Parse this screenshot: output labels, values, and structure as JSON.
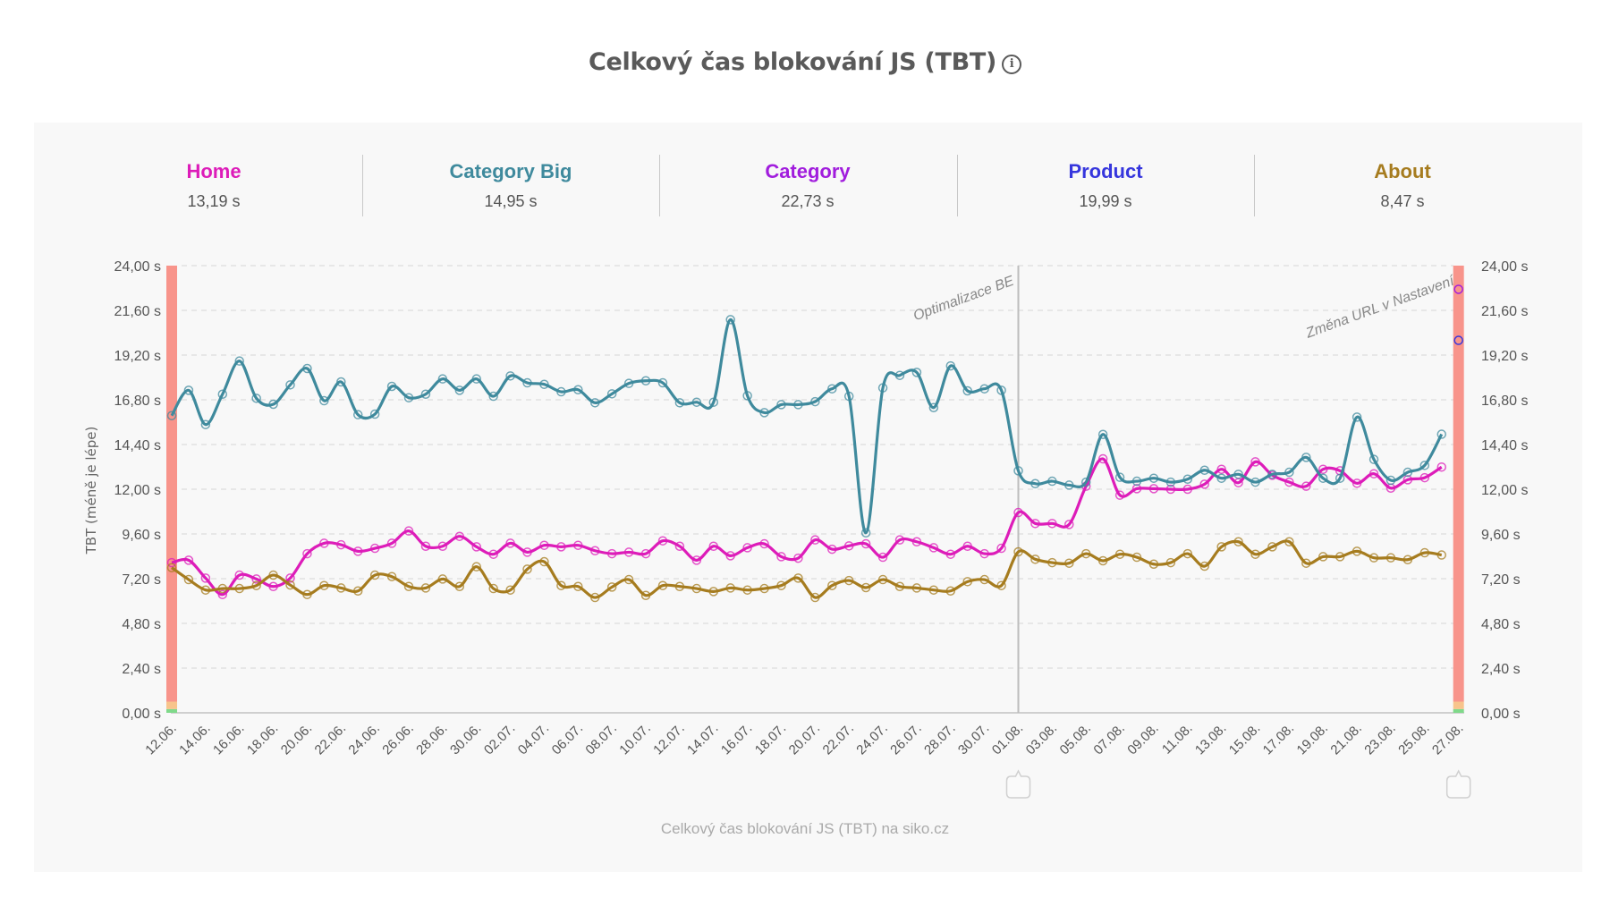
{
  "title": "Celkový čas blokování JS (TBT)",
  "title_icon": "info-icon",
  "footer": "Celkový čas blokování JS (TBT) na siko.cz",
  "summary": [
    {
      "name": "Home",
      "value": "13,19 s",
      "color": "#dd1cb9"
    },
    {
      "name": "Category Big",
      "value": "14,95 s",
      "color": "#3f8a9d"
    },
    {
      "name": "Category",
      "value": "22,73 s",
      "color": "#a11ddd"
    },
    {
      "name": "Product",
      "value": "19,99 s",
      "color": "#3636dd"
    },
    {
      "name": "About",
      "value": "8,47 s",
      "color": "#a67c1f"
    }
  ],
  "chart_data": {
    "type": "line",
    "title": "Celkový čas blokování JS (TBT)",
    "ylabel": "TBT (méně je lépe)",
    "xlabel": "",
    "ylim": [
      0,
      24
    ],
    "y_ticks": [
      "0,00 s",
      "2,40 s",
      "4,80 s",
      "7,20 s",
      "9,60 s",
      "12,00 s",
      "14,40 s",
      "16,80 s",
      "19,20 s",
      "21,60 s",
      "24,00 s"
    ],
    "y_axes": [
      "left",
      "right"
    ],
    "grid": true,
    "x": [
      "12.06.",
      "13.06.",
      "14.06.",
      "15.06.",
      "16.06.",
      "17.06.",
      "18.06.",
      "19.06.",
      "20.06.",
      "21.06.",
      "22.06.",
      "23.06.",
      "24.06.",
      "25.06.",
      "26.06.",
      "27.06.",
      "28.06.",
      "29.06.",
      "30.06.",
      "01.07.",
      "02.07.",
      "03.07.",
      "04.07.",
      "05.07.",
      "06.07.",
      "07.07.",
      "08.07.",
      "09.07.",
      "10.07.",
      "11.07.",
      "12.07.",
      "13.07.",
      "14.07.",
      "15.07.",
      "16.07.",
      "17.07.",
      "18.07.",
      "19.07.",
      "20.07.",
      "21.07.",
      "22.07.",
      "23.07.",
      "24.07.",
      "25.07.",
      "26.07.",
      "27.07.",
      "28.07.",
      "29.07.",
      "30.07.",
      "31.07.",
      "01.08.",
      "02.08.",
      "03.08.",
      "04.08.",
      "05.08.",
      "06.08.",
      "07.08.",
      "08.08.",
      "09.08.",
      "10.08.",
      "11.08.",
      "12.08.",
      "13.08.",
      "14.08.",
      "15.08.",
      "16.08.",
      "17.08.",
      "18.08.",
      "19.08.",
      "20.08.",
      "21.08.",
      "22.08.",
      "23.08.",
      "24.08.",
      "25.08.",
      "26.08.",
      "27.08."
    ],
    "x_tick_every": 2,
    "series": [
      {
        "key": "home",
        "color": "#dd1cb9",
        "values": [
          8.06,
          8.19,
          7.23,
          6.35,
          7.39,
          7.18,
          6.78,
          7.23,
          8.54,
          9.1,
          9.02,
          8.67,
          8.83,
          9.1,
          9.76,
          8.94,
          8.94,
          9.47,
          8.91,
          8.51,
          9.1,
          8.62,
          8.99,
          8.91,
          8.99,
          8.7,
          8.54,
          8.62,
          8.54,
          9.23,
          8.94,
          8.19,
          8.94,
          8.43,
          8.86,
          9.07,
          8.38,
          8.3,
          9.28,
          8.78,
          8.96,
          9.07,
          8.35,
          9.28,
          9.18,
          8.86,
          8.51,
          8.94,
          8.54,
          8.83,
          10.75,
          10.16,
          10.16,
          10.11,
          12.16,
          13.63,
          11.68,
          12.03,
          12.03,
          12.0,
          12.0,
          12.27,
          13.07,
          12.35,
          13.47,
          12.75,
          12.38,
          12.16,
          13.07,
          12.99,
          12.32,
          12.83,
          12.06,
          12.51,
          12.62,
          13.19,
          null
        ]
      },
      {
        "key": "about",
        "color": "#a67c1f",
        "values": [
          7.79,
          7.15,
          6.59,
          6.67,
          6.67,
          6.83,
          7.39,
          6.86,
          6.35,
          6.83,
          6.7,
          6.54,
          7.39,
          7.31,
          6.78,
          6.7,
          7.18,
          6.78,
          7.84,
          6.67,
          6.59,
          7.71,
          8.11,
          6.83,
          6.78,
          6.19,
          6.75,
          7.15,
          6.3,
          6.83,
          6.78,
          6.67,
          6.51,
          6.7,
          6.59,
          6.67,
          6.83,
          7.23,
          6.19,
          6.83,
          7.1,
          6.72,
          7.15,
          6.78,
          6.7,
          6.59,
          6.54,
          7.04,
          7.15,
          6.83,
          8.64,
          8.24,
          8.06,
          8.03,
          8.54,
          8.16,
          8.51,
          8.35,
          7.98,
          8.06,
          8.54,
          7.87,
          8.91,
          9.18,
          8.51,
          8.91,
          9.18,
          8.03,
          8.38,
          8.38,
          8.67,
          8.32,
          8.32,
          8.22,
          8.59,
          8.47,
          null
        ]
      },
      {
        "key": "category-big",
        "color": "#3f8a9d",
        "values": [
          15.95,
          17.31,
          15.47,
          17.1,
          18.88,
          16.88,
          16.56,
          17.6,
          18.48,
          16.75,
          17.76,
          16.0,
          16.03,
          17.52,
          16.91,
          17.1,
          17.92,
          17.31,
          17.92,
          16.99,
          18.08,
          17.71,
          17.63,
          17.23,
          17.34,
          16.64,
          17.12,
          17.68,
          17.82,
          17.71,
          16.64,
          16.67,
          16.67,
          21.1,
          17.02,
          16.11,
          16.54,
          16.54,
          16.7,
          17.39,
          16.99,
          9.66,
          17.44,
          18.11,
          18.27,
          16.38,
          18.62,
          17.28,
          17.39,
          17.31,
          12.99,
          12.3,
          12.43,
          12.22,
          12.38,
          14.94,
          12.64,
          12.43,
          12.59,
          12.38,
          12.54,
          13.02,
          12.59,
          12.8,
          12.38,
          12.8,
          12.91,
          13.71,
          12.59,
          12.59,
          15.87,
          13.6,
          12.48,
          12.91,
          13.28,
          14.95,
          null
        ]
      },
      {
        "key": "category",
        "color": "#a11ddd",
        "points": [
          {
            "x": "27.08.",
            "y": 22.73
          }
        ]
      },
      {
        "key": "product",
        "color": "#3636dd",
        "points": [
          {
            "x": "27.08.",
            "y": 19.99
          }
        ]
      }
    ],
    "annotations": [
      {
        "label": "Optimalizace BE",
        "x": "01.08."
      },
      {
        "label": "Změna URL v Nastavení",
        "x": "27.08."
      }
    ],
    "threshold_bands": {
      "at": [
        "12.06.",
        "27.08."
      ],
      "colors": [
        "#7fd98a",
        "#f8c48c",
        "#f8948b"
      ]
    },
    "range_handles": [
      "01.08.",
      "27.08."
    ]
  }
}
